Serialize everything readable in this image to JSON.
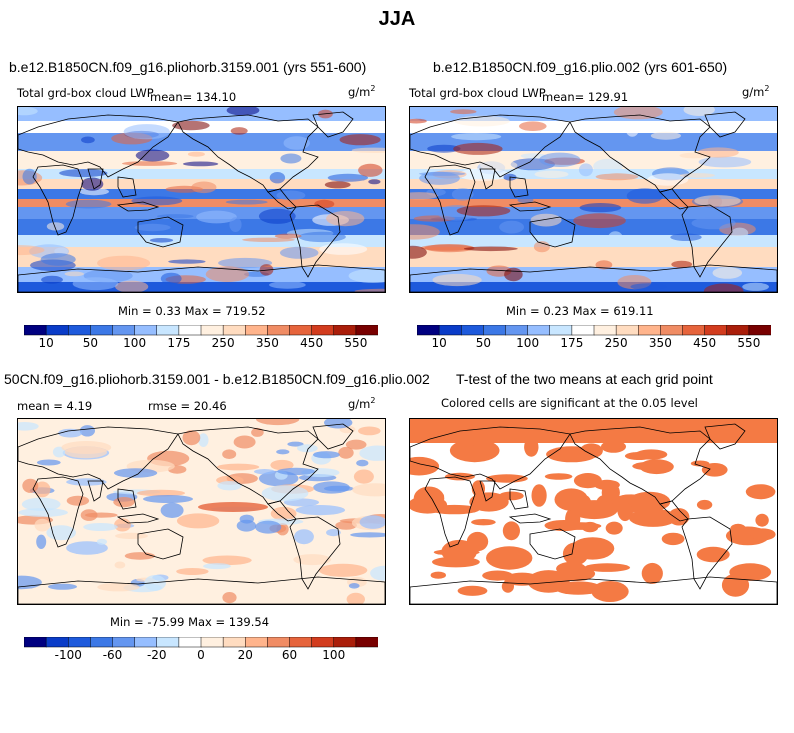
{
  "title": "JJA",
  "panels": [
    {
      "id": "p1",
      "title": "b.e12.B1850CN.f09_g16.pliohorb.3159.001 (yrs 551-600)",
      "variable": "Total grd-box cloud LWP",
      "mean": "mean= 134.10",
      "units": "g/m",
      "units_exp": "2",
      "stats": "Min =    0.33 Max = 719.52",
      "colorbar_labels": [
        "10",
        "50",
        "100",
        "175",
        "250",
        "350",
        "450",
        "550"
      ]
    },
    {
      "id": "p2",
      "title": "b.e12.B1850CN.f09_g16.plio.002 (yrs 601-650)",
      "variable": "Total grd-box cloud LWP",
      "mean": "mean= 129.91",
      "units": "g/m",
      "units_exp": "2",
      "stats": "Min =    0.23 Max = 619.11",
      "colorbar_labels": [
        "10",
        "50",
        "100",
        "175",
        "250",
        "350",
        "450",
        "550"
      ]
    },
    {
      "id": "p3",
      "title": "50CN.f09_g16.pliohorb.3159.001 - b.e12.B1850CN.f09_g16.plio.002",
      "mean": "mean =    4.19",
      "rmse": "rmse =  20.46",
      "units": "g/m",
      "units_exp": "2",
      "stats": "Min = -75.99 Max = 139.54",
      "colorbar_labels": [
        "-100",
        "-60",
        "-20",
        "0",
        "20",
        "60",
        "100"
      ]
    },
    {
      "id": "p4",
      "title": "T-test of the two means at each grid point",
      "subtitle": "Colored cells are significant at the 0.05 level"
    }
  ],
  "chart_data": [
    {
      "type": "heatmap",
      "title": "b.e12.B1850CN.f09_g16.pliohorb.3159.001 (yrs 551-600)",
      "variable": "Total grd-box cloud LWP",
      "units": "g/m^2",
      "mean": 134.1,
      "min": 0.33,
      "max": 719.52,
      "colorbar_levels": [
        10,
        50,
        100,
        175,
        250,
        350,
        450,
        550
      ],
      "colors": [
        "#000080",
        "#0a3cc8",
        "#1e5adc",
        "#3c78e6",
        "#6496f0",
        "#96beff",
        "#c8e6ff",
        "#ffffff",
        "#fff0e0",
        "#ffdcc0",
        "#ffb48c",
        "#f08c64",
        "#e6643c",
        "#d23c1e",
        "#aa1e0a",
        "#780000"
      ]
    },
    {
      "type": "heatmap",
      "title": "b.e12.B1850CN.f09_g16.plio.002 (yrs 601-650)",
      "variable": "Total grd-box cloud LWP",
      "units": "g/m^2",
      "mean": 129.91,
      "min": 0.23,
      "max": 619.11,
      "colorbar_levels": [
        10,
        50,
        100,
        175,
        250,
        350,
        450,
        550
      ]
    },
    {
      "type": "heatmap",
      "title": "50CN.f09_g16.pliohorb.3159.001 - b.e12.B1850CN.f09_g16.plio.002",
      "units": "g/m^2",
      "mean": 4.19,
      "rmse": 20.46,
      "min": -75.99,
      "max": 139.54,
      "colorbar_levels": [
        -100,
        -60,
        -20,
        0,
        20,
        60,
        100
      ]
    },
    {
      "type": "heatmap",
      "title": "T-test of the two means at each grid point",
      "subtitle": "Colored cells are significant at the 0.05 level",
      "significance_level": 0.05,
      "significant_color": "#f47a44"
    }
  ],
  "colors": {
    "lwp": [
      "#000080",
      "#0a3cc8",
      "#1e5adc",
      "#3c78e6",
      "#6496f0",
      "#96beff",
      "#c8e6ff",
      "#ffffff",
      "#fff0e0",
      "#ffdcc0",
      "#ffb48c",
      "#f08c64",
      "#e6643c",
      "#d23c1e",
      "#aa1e0a",
      "#780000"
    ],
    "diff": [
      "#000080",
      "#0a3cc8",
      "#1e5adc",
      "#3c78e6",
      "#6496f0",
      "#96beff",
      "#c8e6ff",
      "#ffffff",
      "#fff0e0",
      "#ffdcc0",
      "#ffb48c",
      "#f08c64",
      "#e6643c",
      "#d23c1e",
      "#aa1e0a",
      "#780000"
    ],
    "sig": "#f47a44"
  }
}
